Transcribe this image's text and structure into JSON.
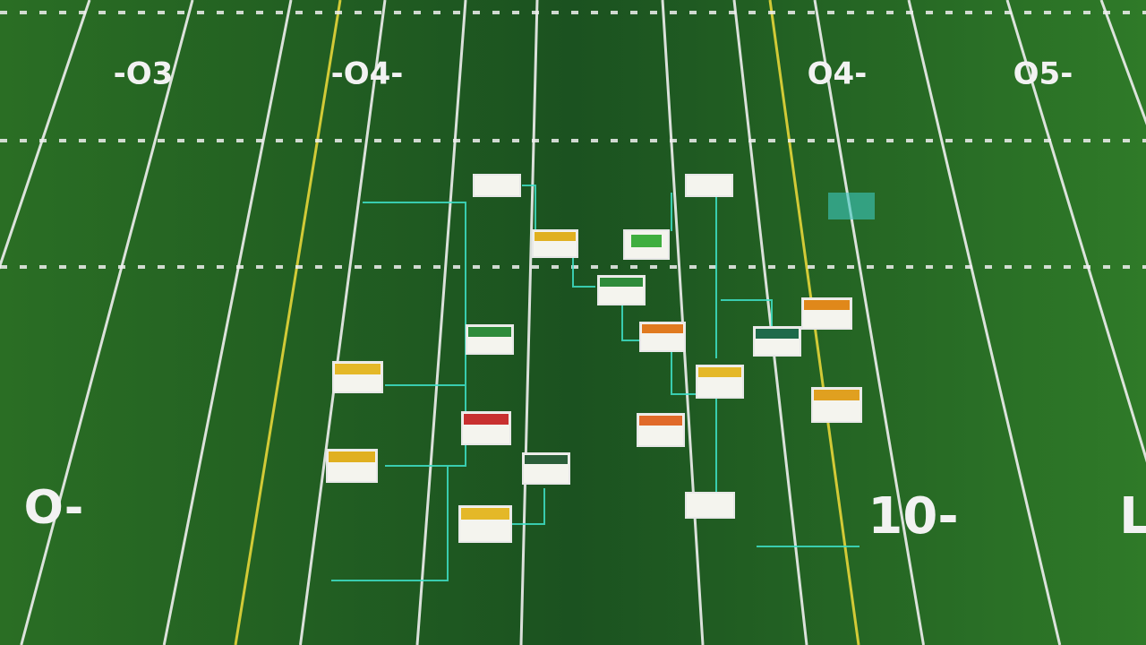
{
  "field": {
    "yard_numbers": [
      "-O3",
      "-O4-",
      "O4-",
      "O5-",
      "O-",
      "10-",
      "L"
    ]
  }
}
